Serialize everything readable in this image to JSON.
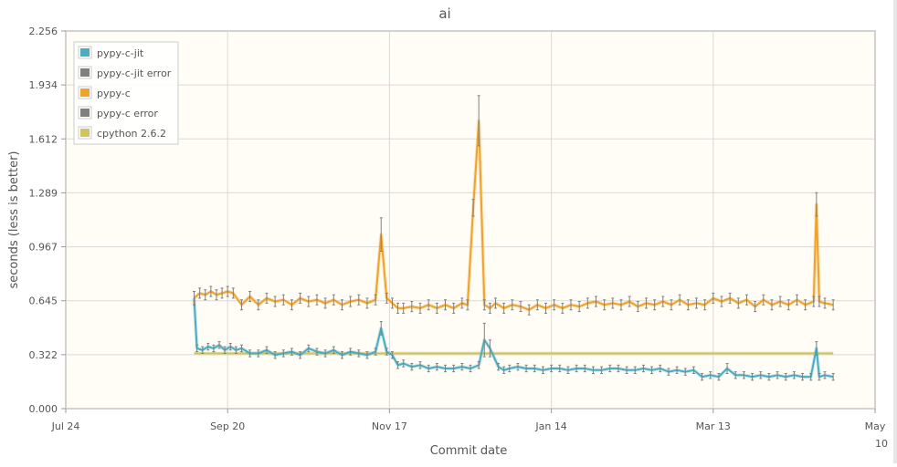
{
  "chart_data": {
    "type": "line",
    "title": "ai",
    "xlabel": "Commit date",
    "ylabel": "seconds (less is better)",
    "ylim": [
      0,
      2.256
    ],
    "x_range": [
      "2009-07-24",
      "2010-05-10"
    ],
    "x_ticks": [
      {
        "date": "2009-07-24",
        "label": "Jul 24",
        "sublabel": ""
      },
      {
        "date": "2009-09-20",
        "label": "Sep 20",
        "sublabel": ""
      },
      {
        "date": "2009-11-17",
        "label": "Nov 17",
        "sublabel": ""
      },
      {
        "date": "2010-01-14",
        "label": "Jan 14",
        "sublabel": ""
      },
      {
        "date": "2010-03-13",
        "label": "Mar 13",
        "sublabel": ""
      },
      {
        "date": "2010-05-10",
        "label": "May",
        "sublabel": "10"
      }
    ],
    "y_ticks": [
      "0.000",
      "0.322",
      "0.645",
      "0.967",
      "1.289",
      "1.612",
      "1.934",
      "2.256"
    ],
    "grid": true,
    "legend_position": "top-left",
    "colors": {
      "background": "#fffdf6",
      "grid": "#d9d9d9",
      "axis": "#999999",
      "error": "#808080",
      "text": "#555555"
    },
    "series": [
      {
        "name": "pypy-c-jit",
        "color": "#4aaec2",
        "error_name": "pypy-c-jit error",
        "x": [
          "2009-09-08",
          "2009-09-09",
          "2009-09-11",
          "2009-09-13",
          "2009-09-15",
          "2009-09-17",
          "2009-09-19",
          "2009-09-21",
          "2009-09-23",
          "2009-09-25",
          "2009-09-28",
          "2009-10-01",
          "2009-10-04",
          "2009-10-07",
          "2009-10-10",
          "2009-10-13",
          "2009-10-16",
          "2009-10-19",
          "2009-10-22",
          "2009-10-25",
          "2009-10-28",
          "2009-10-31",
          "2009-11-03",
          "2009-11-06",
          "2009-11-09",
          "2009-11-12",
          "2009-11-14",
          "2009-11-16",
          "2009-11-18",
          "2009-11-20",
          "2009-11-22",
          "2009-11-25",
          "2009-11-28",
          "2009-12-01",
          "2009-12-04",
          "2009-12-07",
          "2009-12-10",
          "2009-12-13",
          "2009-12-16",
          "2009-12-19",
          "2009-12-21",
          "2009-12-23",
          "2009-12-26",
          "2009-12-28",
          "2009-12-30",
          "2010-01-02",
          "2010-01-05",
          "2010-01-08",
          "2010-01-11",
          "2010-01-14",
          "2010-01-17",
          "2010-01-20",
          "2010-01-23",
          "2010-01-26",
          "2010-01-29",
          "2010-02-01",
          "2010-02-04",
          "2010-02-07",
          "2010-02-10",
          "2010-02-13",
          "2010-02-16",
          "2010-02-19",
          "2010-02-22",
          "2010-02-25",
          "2010-02-28",
          "2010-03-03",
          "2010-03-06",
          "2010-03-09",
          "2010-03-12",
          "2010-03-15",
          "2010-03-18",
          "2010-03-21",
          "2010-03-24",
          "2010-03-27",
          "2010-03-30",
          "2010-04-02",
          "2010-04-05",
          "2010-04-08",
          "2010-04-11",
          "2010-04-14",
          "2010-04-17",
          "2010-04-19",
          "2010-04-20",
          "2010-04-22",
          "2010-04-25"
        ],
        "values": [
          0.66,
          0.36,
          0.35,
          0.37,
          0.36,
          0.38,
          0.35,
          0.37,
          0.35,
          0.36,
          0.33,
          0.33,
          0.35,
          0.32,
          0.33,
          0.34,
          0.32,
          0.36,
          0.34,
          0.33,
          0.35,
          0.32,
          0.34,
          0.33,
          0.32,
          0.34,
          0.48,
          0.34,
          0.32,
          0.26,
          0.27,
          0.25,
          0.26,
          0.24,
          0.25,
          0.24,
          0.24,
          0.25,
          0.24,
          0.26,
          0.41,
          0.36,
          0.25,
          0.23,
          0.24,
          0.25,
          0.24,
          0.24,
          0.23,
          0.24,
          0.24,
          0.23,
          0.24,
          0.24,
          0.23,
          0.23,
          0.24,
          0.24,
          0.23,
          0.23,
          0.24,
          0.23,
          0.24,
          0.22,
          0.23,
          0.22,
          0.23,
          0.19,
          0.2,
          0.19,
          0.24,
          0.2,
          0.2,
          0.19,
          0.2,
          0.19,
          0.2,
          0.19,
          0.2,
          0.19,
          0.19,
          0.36,
          0.19,
          0.2,
          0.19
        ],
        "errors": [
          0.04,
          0.02,
          0.02,
          0.02,
          0.02,
          0.02,
          0.02,
          0.02,
          0.02,
          0.02,
          0.02,
          0.02,
          0.02,
          0.02,
          0.02,
          0.02,
          0.02,
          0.02,
          0.02,
          0.02,
          0.02,
          0.02,
          0.02,
          0.02,
          0.02,
          0.02,
          0.04,
          0.02,
          0.02,
          0.02,
          0.02,
          0.02,
          0.02,
          0.02,
          0.02,
          0.02,
          0.02,
          0.02,
          0.02,
          0.02,
          0.1,
          0.05,
          0.02,
          0.02,
          0.02,
          0.02,
          0.02,
          0.02,
          0.02,
          0.02,
          0.02,
          0.02,
          0.02,
          0.02,
          0.02,
          0.02,
          0.02,
          0.02,
          0.02,
          0.02,
          0.02,
          0.02,
          0.02,
          0.02,
          0.02,
          0.02,
          0.02,
          0.02,
          0.02,
          0.02,
          0.03,
          0.02,
          0.02,
          0.02,
          0.02,
          0.02,
          0.02,
          0.02,
          0.02,
          0.02,
          0.02,
          0.04,
          0.02,
          0.02,
          0.02
        ]
      },
      {
        "name": "pypy-c",
        "color": "#f0a22b",
        "error_name": "pypy-c error",
        "x": [
          "2009-09-08",
          "2009-09-10",
          "2009-09-12",
          "2009-09-14",
          "2009-09-16",
          "2009-09-18",
          "2009-09-20",
          "2009-09-22",
          "2009-09-25",
          "2009-09-28",
          "2009-10-01",
          "2009-10-04",
          "2009-10-07",
          "2009-10-10",
          "2009-10-13",
          "2009-10-16",
          "2009-10-19",
          "2009-10-22",
          "2009-10-25",
          "2009-10-28",
          "2009-10-31",
          "2009-11-03",
          "2009-11-06",
          "2009-11-09",
          "2009-11-12",
          "2009-11-14",
          "2009-11-16",
          "2009-11-18",
          "2009-11-20",
          "2009-11-22",
          "2009-11-25",
          "2009-11-28",
          "2009-12-01",
          "2009-12-04",
          "2009-12-07",
          "2009-12-10",
          "2009-12-13",
          "2009-12-15",
          "2009-12-17",
          "2009-12-19",
          "2009-12-21",
          "2009-12-23",
          "2009-12-25",
          "2009-12-28",
          "2009-12-31",
          "2010-01-03",
          "2010-01-06",
          "2010-01-09",
          "2010-01-12",
          "2010-01-15",
          "2010-01-18",
          "2010-01-21",
          "2010-01-24",
          "2010-01-27",
          "2010-01-30",
          "2010-02-02",
          "2010-02-05",
          "2010-02-08",
          "2010-02-11",
          "2010-02-14",
          "2010-02-17",
          "2010-02-20",
          "2010-02-23",
          "2010-02-26",
          "2010-03-01",
          "2010-03-04",
          "2010-03-07",
          "2010-03-10",
          "2010-03-13",
          "2010-03-16",
          "2010-03-19",
          "2010-03-22",
          "2010-03-25",
          "2010-03-28",
          "2010-03-31",
          "2010-04-03",
          "2010-04-06",
          "2010-04-09",
          "2010-04-12",
          "2010-04-15",
          "2010-04-18",
          "2010-04-19",
          "2010-04-20",
          "2010-04-22",
          "2010-04-25"
        ],
        "values": [
          0.66,
          0.69,
          0.68,
          0.7,
          0.68,
          0.69,
          0.7,
          0.69,
          0.62,
          0.67,
          0.62,
          0.66,
          0.64,
          0.65,
          0.62,
          0.66,
          0.64,
          0.65,
          0.63,
          0.65,
          0.62,
          0.64,
          0.65,
          0.63,
          0.65,
          1.04,
          0.66,
          0.63,
          0.6,
          0.6,
          0.61,
          0.6,
          0.62,
          0.6,
          0.62,
          0.6,
          0.63,
          0.62,
          1.2,
          1.72,
          0.62,
          0.6,
          0.63,
          0.6,
          0.62,
          0.61,
          0.59,
          0.62,
          0.6,
          0.62,
          0.6,
          0.62,
          0.61,
          0.63,
          0.64,
          0.62,
          0.63,
          0.62,
          0.64,
          0.61,
          0.63,
          0.62,
          0.64,
          0.62,
          0.65,
          0.62,
          0.63,
          0.62,
          0.66,
          0.64,
          0.66,
          0.63,
          0.65,
          0.61,
          0.65,
          0.62,
          0.64,
          0.62,
          0.65,
          0.62,
          0.64,
          1.22,
          0.64,
          0.63,
          0.62
        ],
        "errors": [
          0.04,
          0.03,
          0.03,
          0.03,
          0.03,
          0.03,
          0.03,
          0.03,
          0.03,
          0.03,
          0.03,
          0.03,
          0.03,
          0.03,
          0.03,
          0.03,
          0.03,
          0.03,
          0.03,
          0.03,
          0.03,
          0.03,
          0.03,
          0.03,
          0.03,
          0.1,
          0.03,
          0.03,
          0.03,
          0.03,
          0.03,
          0.03,
          0.03,
          0.03,
          0.03,
          0.03,
          0.03,
          0.03,
          0.05,
          0.15,
          0.03,
          0.03,
          0.03,
          0.03,
          0.03,
          0.03,
          0.03,
          0.03,
          0.03,
          0.03,
          0.03,
          0.03,
          0.03,
          0.03,
          0.03,
          0.03,
          0.03,
          0.03,
          0.03,
          0.03,
          0.03,
          0.03,
          0.03,
          0.03,
          0.03,
          0.03,
          0.03,
          0.03,
          0.03,
          0.03,
          0.03,
          0.03,
          0.03,
          0.03,
          0.03,
          0.03,
          0.03,
          0.03,
          0.03,
          0.03,
          0.03,
          0.07,
          0.03,
          0.03,
          0.03
        ]
      },
      {
        "name": "cpython 2.6.2",
        "color": "#d4c25b",
        "x": [
          "2009-09-08",
          "2010-04-25"
        ],
        "values": [
          0.33,
          0.33
        ]
      }
    ]
  }
}
